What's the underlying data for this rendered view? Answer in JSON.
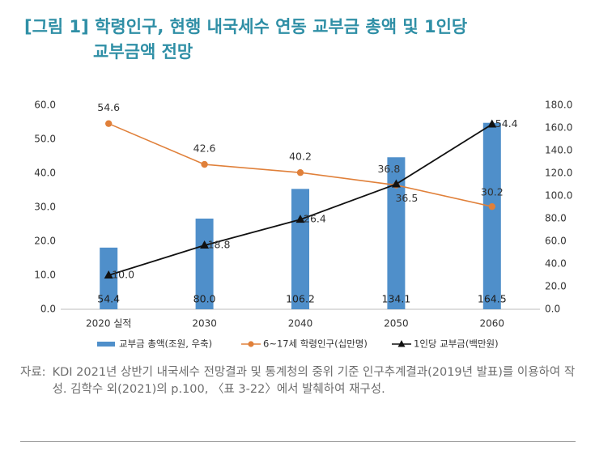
{
  "title": {
    "line1": "[그림 1] 학령인구, 현행 내국세수 연동 교부금 총액 및 1인당",
    "line2": "교부금액 전망"
  },
  "chart_data": {
    "type": "bar",
    "categories": [
      "2020 실적",
      "2030",
      "2040",
      "2050",
      "2060"
    ],
    "y_left": {
      "ticks": [
        "60.0",
        "50.0",
        "40.0",
        "30.0",
        "20.0",
        "10.0",
        "0.0"
      ],
      "range": [
        0,
        60
      ]
    },
    "y_right": {
      "ticks": [
        "180.0",
        "160.0",
        "140.0",
        "120.0",
        "100.0",
        "80.0",
        "60.0",
        "40.0",
        "20.0",
        "0.0"
      ],
      "range": [
        0,
        180
      ]
    },
    "series": [
      {
        "name": "교부금 총액(조원, 우축)",
        "kind": "bar",
        "axis": "right",
        "color": "#4f8fca",
        "values": [
          54.4,
          80.0,
          106.2,
          134.1,
          164.5
        ],
        "labels": [
          "54.4",
          "80.0",
          "106.2",
          "134.1",
          "164.5"
        ]
      },
      {
        "name": "6~17세 학령인구(십만명)",
        "kind": "line",
        "axis": "left",
        "color": "#e0803a",
        "marker": "circle",
        "values": [
          54.6,
          42.6,
          40.2,
          36.5,
          30.2
        ],
        "labels": [
          "54.6",
          "42.6",
          "40.2",
          "36.5",
          "30.2"
        ]
      },
      {
        "name": "1인당 교부금(백만원)",
        "kind": "line",
        "axis": "left",
        "color": "#111111",
        "marker": "triangle",
        "values": [
          10.0,
          18.8,
          26.4,
          36.8,
          54.4
        ],
        "labels": [
          "10.0",
          "18.8",
          "26.4",
          "36.8",
          "54.4"
        ]
      }
    ],
    "legend_position": "bottom",
    "grid": false
  },
  "source": {
    "label": "자료:",
    "text": "KDI 2021년 상반기 내국세수 전망결과 및 통계청의 중위 기준 인구추계결과(2019년 발표)를 이용하여 작성. 김학수 외(2021)의 p.100, 〈표 3-22〉에서 발췌하여 재구성."
  }
}
